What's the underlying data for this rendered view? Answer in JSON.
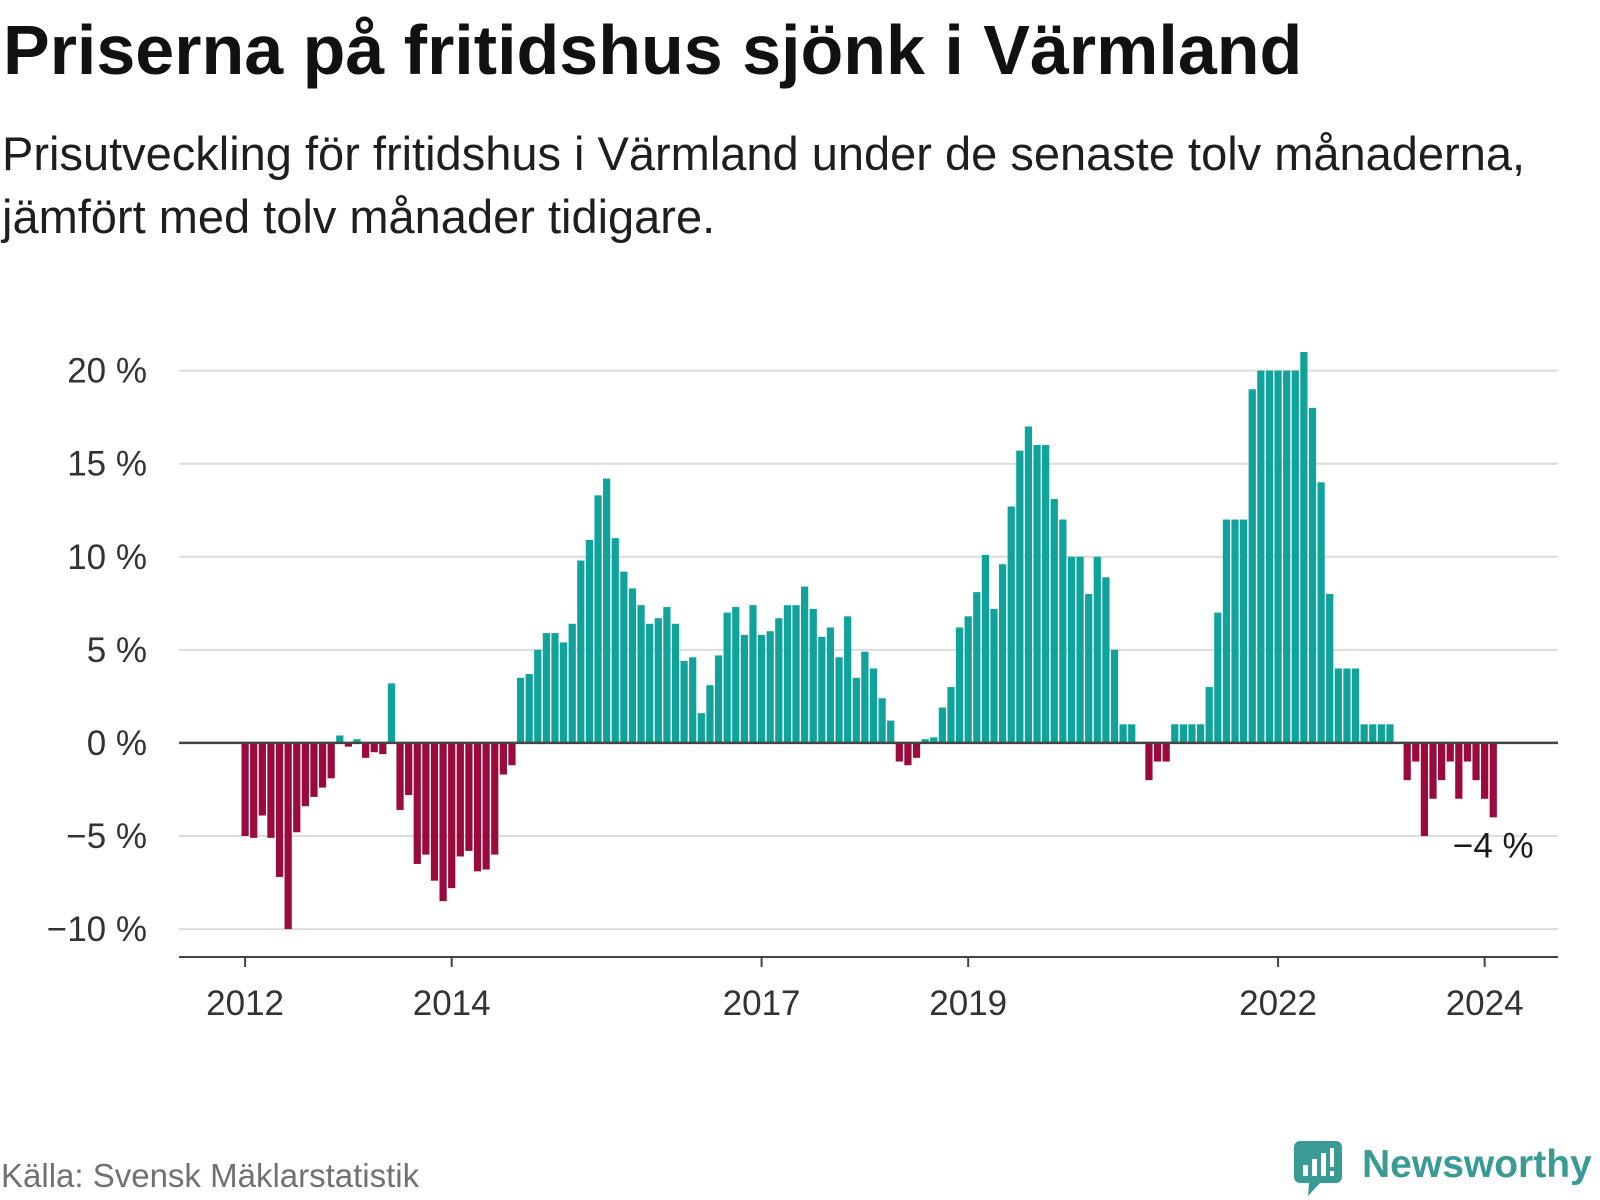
{
  "chart_data": {
    "type": "bar",
    "title": "Priserna på fritidshus sjönk i Värmland",
    "subtitle": "Prisutveckling för fritidshus i Värmland under de senaste tolv månaderna, jämfört med tolv månader tidigare.",
    "x_start_year": 2012,
    "x_start_month": 1,
    "x_step_months": 1,
    "xlim": [
      2011.36,
      2024.71
    ],
    "ylim": [
      -11.5,
      21
    ],
    "grid": true,
    "xticks": [
      2012,
      2014,
      2017,
      2019,
      2022,
      2024
    ],
    "xtick_labels": [
      "2012",
      "2014",
      "2017",
      "2019",
      "2022",
      "2024"
    ],
    "yticks": [
      20,
      15,
      10,
      5,
      0,
      -5,
      -10
    ],
    "ytick_labels": [
      "20 %",
      "15 %",
      "10 %",
      "5 %",
      "0 %",
      "−5 %",
      "−10 %"
    ],
    "values": [
      -5.0,
      -5.1,
      -3.9,
      -5.1,
      -7.2,
      -10.0,
      -4.8,
      -3.4,
      -2.9,
      -2.4,
      -1.9,
      0.4,
      -0.2,
      0.2,
      -0.8,
      -0.5,
      -0.6,
      3.2,
      -3.6,
      -2.8,
      -6.5,
      -6.0,
      -7.4,
      -8.5,
      -7.8,
      -6.1,
      -5.8,
      -6.9,
      -6.8,
      -6.0,
      -1.7,
      -1.2,
      3.5,
      3.7,
      5.0,
      5.9,
      5.9,
      5.4,
      6.4,
      9.8,
      10.9,
      13.3,
      14.2,
      11.0,
      9.2,
      8.3,
      7.4,
      6.4,
      6.7,
      7.3,
      6.4,
      4.4,
      4.6,
      1.6,
      3.1,
      4.7,
      7.0,
      7.3,
      5.8,
      7.4,
      5.8,
      6.0,
      6.7,
      7.4,
      7.4,
      8.4,
      7.2,
      5.7,
      6.2,
      4.6,
      6.8,
      3.5,
      4.9,
      4.0,
      2.4,
      1.2,
      -1.0,
      -1.2,
      -0.8,
      0.2,
      0.3,
      1.9,
      3.0,
      6.2,
      6.8,
      8.1,
      10.1,
      7.2,
      9.6,
      12.7,
      15.7,
      17.0,
      16.0,
      16.0,
      13.1,
      12.0,
      10.0,
      10.0,
      8.0,
      10.0,
      8.9,
      5.0,
      1.0,
      1.0,
      0,
      -2.0,
      -1.0,
      -1.0,
      1.0,
      1.0,
      1.0,
      1.0,
      3.0,
      7.0,
      12.0,
      12.0,
      12.0,
      19.0,
      20.0,
      20.0,
      20.0,
      20.0,
      20.0,
      21.0,
      18.0,
      14.0,
      8.0,
      4.0,
      4.0,
      4.0,
      1.0,
      1.0,
      1.0,
      1.0,
      0,
      -2.0,
      -1.0,
      -5.0,
      -3.0,
      -2.0,
      -1.0,
      -3.0,
      -1.0,
      -2.0,
      -3.0,
      -4.0
    ],
    "annotations": [
      {
        "text": "−4 %",
        "index": 145
      }
    ],
    "source": "Källa: Svensk Mäklarstatistik"
  },
  "brand": {
    "name": "Newsworthy",
    "icon": "newsworthy-logo-icon"
  },
  "colors": {
    "positive": "#0fa39b",
    "negative": "#9a0a3c",
    "brand": "#3a9b94",
    "grid": "#dcdcdc",
    "axis": "#444444"
  }
}
